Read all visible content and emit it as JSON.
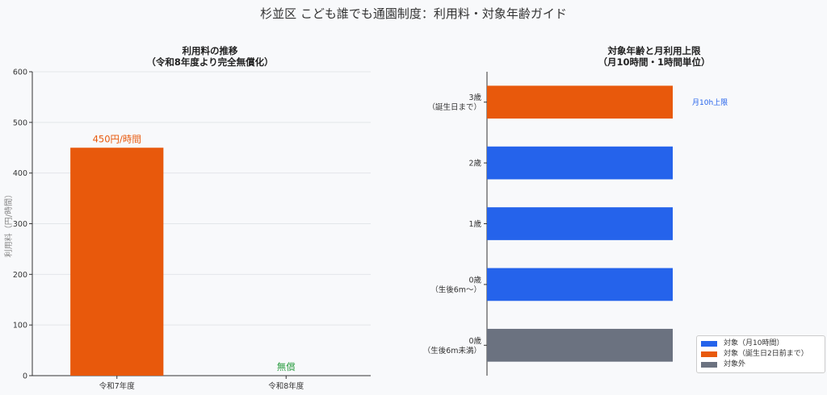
{
  "title": "杉並区 こども誰でも通園制度：利用料・対象年齢ガイド",
  "chart_data": [
    {
      "type": "bar",
      "title_lines": [
        "利用料の推移",
        "（令和8年度より完全無償化）"
      ],
      "categories": [
        "令和7年度",
        "令和8年度"
      ],
      "values": [
        450,
        0
      ],
      "bar_colors": [
        "#e8590c",
        "#e8590c"
      ],
      "data_labels": [
        "450円/時間",
        "無償"
      ],
      "data_label_colors": [
        "#e8590c",
        "#2f9e44"
      ],
      "ylabel": "利用料（円/時間）",
      "ylim": [
        0,
        600
      ],
      "yticks": [
        0,
        100,
        200,
        300,
        400,
        500,
        600
      ],
      "grid": true
    },
    {
      "type": "bar",
      "orientation": "horizontal",
      "title_lines": [
        "対象年齢と月利用上限",
        "（月10時間・1時間単位）"
      ],
      "categories": [
        [
          "3歳",
          "（誕生日まで）"
        ],
        [
          "2歳"
        ],
        [
          "1歳"
        ],
        [
          "0歳",
          "（生後6m〜）"
        ],
        [
          "0歳",
          "（生後6m未満）"
        ]
      ],
      "values": [
        10,
        10,
        10,
        10,
        10
      ],
      "bar_colors": [
        "#e8590c",
        "#2563eb",
        "#2563eb",
        "#2563eb",
        "#6b7280"
      ],
      "annotation": "月10h上限",
      "annotation_color": "#2563eb",
      "legend": [
        {
          "label": "対象（月10時間）",
          "color": "#2563eb"
        },
        {
          "label": "対象（誕生日2日前まで）",
          "color": "#e8590c"
        },
        {
          "label": "対象外",
          "color": "#6b7280"
        }
      ],
      "legend_position": "bottom-right"
    }
  ]
}
